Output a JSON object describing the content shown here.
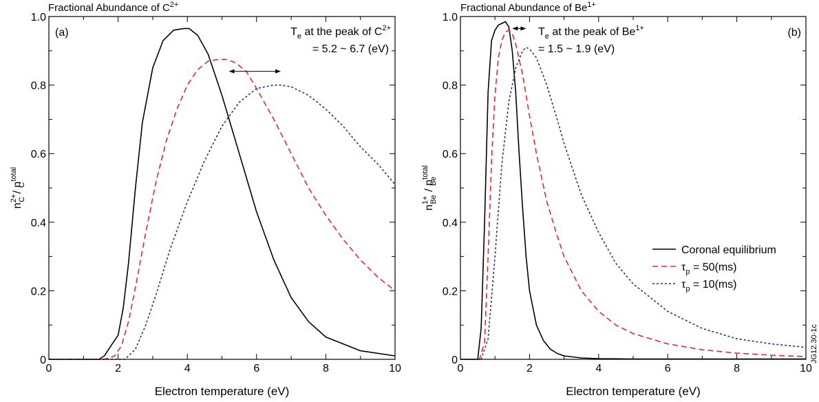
{
  "chart_data": [
    {
      "type": "line",
      "panel_label": "(a)",
      "title": {
        "main": "Fractional Abundance of C",
        "sup": "2+"
      },
      "xlabel": "Electron temperature (eV)",
      "ylabel": {
        "n": "n",
        "n_sup": "2+",
        "n_sub": "C",
        "slash": " / ",
        "d": "n",
        "d_sup": "total",
        "d_sub": "C"
      },
      "xlim": [
        0,
        10
      ],
      "ylim": [
        0,
        1.0
      ],
      "xticks": [
        0,
        2,
        4,
        6,
        8,
        10
      ],
      "yticks": [
        0,
        0.2,
        0.4,
        0.6,
        0.8,
        1.0
      ],
      "xtick_labels": [
        "0",
        "2",
        "4",
        "6",
        "8",
        "10"
      ],
      "ytick_labels": [
        "0",
        "0.2",
        "0.4",
        "0.6",
        "0.8",
        "1.0"
      ],
      "annotation": {
        "line1_a": "T",
        "line1_sub": "e",
        "line1_b": " at the peak of C",
        "line1_sup": "2+",
        "line2": "= 5.2 ~ 6.7 (eV)"
      },
      "arrow_range": [
        5.2,
        6.7
      ],
      "arrow_y": 0.84,
      "series": [
        {
          "color": "#000000",
          "dash": "solid",
          "x": [
            0,
            1.45,
            1.6,
            1.8,
            2.0,
            2.15,
            2.3,
            2.5,
            2.7,
            3.0,
            3.3,
            3.6,
            3.9,
            4.05,
            4.3,
            4.6,
            5.0,
            5.5,
            6.0,
            6.5,
            7.0,
            7.5,
            8.0,
            9.0,
            10.0
          ],
          "y": [
            0,
            0,
            0.01,
            0.04,
            0.07,
            0.15,
            0.28,
            0.5,
            0.69,
            0.85,
            0.93,
            0.96,
            0.965,
            0.965,
            0.945,
            0.89,
            0.77,
            0.6,
            0.43,
            0.29,
            0.18,
            0.11,
            0.065,
            0.025,
            0.01
          ]
        },
        {
          "color": "#e8262a",
          "dash": "8,5",
          "x": [
            0,
            1.6,
            1.9,
            2.1,
            2.3,
            2.5,
            2.8,
            3.1,
            3.4,
            3.7,
            4.0,
            4.3,
            4.6,
            4.9,
            5.15,
            5.4,
            5.7,
            6.0,
            6.5,
            7.0,
            7.5,
            8.0,
            8.5,
            9.0,
            9.5,
            10.0
          ],
          "y": [
            0,
            0,
            0.01,
            0.04,
            0.11,
            0.21,
            0.37,
            0.52,
            0.64,
            0.73,
            0.8,
            0.845,
            0.87,
            0.875,
            0.875,
            0.865,
            0.84,
            0.79,
            0.7,
            0.6,
            0.5,
            0.42,
            0.35,
            0.29,
            0.24,
            0.2
          ]
        },
        {
          "color": "#2b2a8f",
          "dash": "3,3",
          "x": [
            0,
            2.2,
            2.5,
            2.8,
            3.1,
            3.5,
            4.0,
            4.5,
            5.0,
            5.5,
            6.0,
            6.5,
            6.7,
            7.0,
            7.5,
            8.0,
            8.5,
            9.0,
            9.5,
            10.0
          ],
          "y": [
            0,
            0,
            0.03,
            0.1,
            0.19,
            0.32,
            0.46,
            0.58,
            0.68,
            0.75,
            0.79,
            0.8,
            0.8,
            0.795,
            0.77,
            0.73,
            0.68,
            0.62,
            0.57,
            0.51
          ]
        }
      ]
    },
    {
      "type": "line",
      "panel_label": "(b)",
      "title": {
        "main": "Fractional Abundance of Be",
        "sup": "1+"
      },
      "xlabel": "Electron temperature (eV)",
      "ylabel": {
        "n": "n",
        "n_sup": "1+",
        "n_sub": "Be",
        "slash": " / ",
        "d": "n",
        "d_sup": "total",
        "d_sub": "Be"
      },
      "xlim": [
        0,
        10
      ],
      "ylim": [
        0,
        1.0
      ],
      "xticks": [
        0,
        2,
        4,
        6,
        8,
        10
      ],
      "yticks": [
        0,
        0.2,
        0.4,
        0.6,
        0.8,
        1.0
      ],
      "xtick_labels": [
        "0",
        "2",
        "4",
        "6",
        "8",
        "10"
      ],
      "ytick_labels": [
        "0",
        "0.2",
        "0.4",
        "0.6",
        "0.8",
        "1.0"
      ],
      "annotation": {
        "line1_a": "T",
        "line1_sub": "e",
        "line1_b": " at the peak of Be",
        "line1_sup": "1+",
        "line2": "= 1.5 ~ 1.9 (eV)"
      },
      "arrow_range": [
        1.5,
        1.9
      ],
      "arrow_y": 0.965,
      "legend": {
        "placement": "center-right",
        "entries": [
          {
            "label": "Coronal equilibrium",
            "tau": false
          },
          {
            "label_a": "τ",
            "label_sub": "p",
            "label_b": " = 50(ms)",
            "tau": true
          },
          {
            "label_a": "τ",
            "label_sub": "p",
            "label_b": " = 10(ms)",
            "tau": true
          }
        ]
      },
      "series": [
        {
          "color": "#000000",
          "dash": "solid",
          "x": [
            0,
            0.5,
            0.6,
            0.7,
            0.8,
            0.9,
            1.0,
            1.1,
            1.2,
            1.3,
            1.4,
            1.5,
            1.6,
            1.7,
            1.8,
            1.9,
            2.0,
            2.2,
            2.4,
            2.6,
            2.8,
            3.0,
            3.5,
            4.0,
            5.0,
            6.0,
            8.0,
            10.0
          ],
          "y": [
            0,
            0,
            0.09,
            0.4,
            0.78,
            0.93,
            0.96,
            0.975,
            0.98,
            0.985,
            0.97,
            0.9,
            0.78,
            0.6,
            0.44,
            0.3,
            0.2,
            0.1,
            0.055,
            0.03,
            0.017,
            0.01,
            0.004,
            0.002,
            0.001,
            0.001,
            0.001,
            0.001
          ]
        },
        {
          "color": "#e8262a",
          "dash": "8,5",
          "x": [
            0,
            0.55,
            0.7,
            0.8,
            0.9,
            1.0,
            1.1,
            1.2,
            1.3,
            1.4,
            1.5,
            1.6,
            1.8,
            2.0,
            2.2,
            2.5,
            2.8,
            3.0,
            3.5,
            4.0,
            4.5,
            5.0,
            6.0,
            7.0,
            8.0,
            9.0,
            10.0
          ],
          "y": [
            0,
            0,
            0.05,
            0.3,
            0.58,
            0.77,
            0.88,
            0.93,
            0.955,
            0.96,
            0.95,
            0.92,
            0.83,
            0.71,
            0.6,
            0.46,
            0.36,
            0.3,
            0.2,
            0.14,
            0.1,
            0.075,
            0.045,
            0.028,
            0.018,
            0.012,
            0.008
          ]
        },
        {
          "color": "#2b2a8f",
          "dash": "3,3",
          "x": [
            0,
            0.6,
            0.8,
            1.0,
            1.2,
            1.4,
            1.6,
            1.8,
            1.9,
            2.0,
            2.2,
            2.5,
            2.8,
            3.0,
            3.5,
            4.0,
            4.5,
            5.0,
            6.0,
            7.0,
            8.0,
            9.0,
            10.0
          ],
          "y": [
            0,
            0,
            0.06,
            0.3,
            0.57,
            0.75,
            0.85,
            0.9,
            0.91,
            0.905,
            0.88,
            0.8,
            0.7,
            0.63,
            0.48,
            0.37,
            0.28,
            0.22,
            0.14,
            0.09,
            0.06,
            0.045,
            0.035
          ]
        }
      ]
    }
  ],
  "watermark": "JG12.30-1c"
}
